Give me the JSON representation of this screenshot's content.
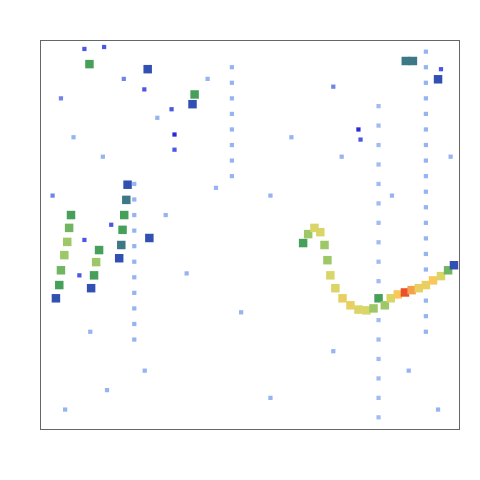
{
  "chart_data": {
    "type": "heatmap",
    "xlim": [
      0,
      100
    ],
    "ylim": [
      0,
      100
    ],
    "grid": false,
    "tick_labels": false,
    "cells": [
      [
        92.1,
        25,
        0.2
      ],
      [
        92.1,
        29,
        0.2
      ],
      [
        92.1,
        33,
        0.2
      ],
      [
        92.1,
        41,
        0.2
      ],
      [
        92.1,
        45,
        0.2
      ],
      [
        92.1,
        49,
        0.2
      ],
      [
        92.1,
        53,
        0.2
      ],
      [
        92.1,
        57,
        0.2
      ],
      [
        92.1,
        61,
        0.2
      ],
      [
        92.1,
        65,
        0.2
      ],
      [
        92.1,
        69,
        0.2
      ],
      [
        92.1,
        73,
        0.2
      ],
      [
        92.1,
        77,
        0.2
      ],
      [
        92.1,
        81,
        0.2
      ],
      [
        92.1,
        85,
        0.2
      ],
      [
        92.1,
        89,
        0.2
      ],
      [
        92.1,
        93,
        0.2
      ],
      [
        92.1,
        97,
        0.2
      ],
      [
        80.8,
        3,
        0.18
      ],
      [
        80.8,
        8,
        0.18
      ],
      [
        80.8,
        13,
        0.18
      ],
      [
        80.8,
        18,
        0.18
      ],
      [
        80.8,
        23,
        0.18
      ],
      [
        80.8,
        28,
        0.18
      ],
      [
        80.8,
        38,
        0.18
      ],
      [
        80.8,
        43,
        0.18
      ],
      [
        80.8,
        48,
        0.18
      ],
      [
        80.8,
        53,
        0.18
      ],
      [
        80.8,
        58,
        0.18
      ],
      [
        80.8,
        63,
        0.18
      ],
      [
        80.8,
        68,
        0.18
      ],
      [
        80.8,
        73,
        0.18
      ],
      [
        80.8,
        78,
        0.18
      ],
      [
        80.8,
        83,
        0.18
      ],
      [
        45.8,
        65,
        0.2
      ],
      [
        45.8,
        69,
        0.2
      ],
      [
        45.8,
        73,
        0.2
      ],
      [
        45.8,
        77,
        0.2
      ],
      [
        45.8,
        81,
        0.2
      ],
      [
        45.8,
        85,
        0.2
      ],
      [
        45.8,
        89,
        0.2
      ],
      [
        45.8,
        93,
        0.2
      ],
      [
        22.5,
        23,
        0.2
      ],
      [
        22.5,
        27,
        0.2
      ],
      [
        22.5,
        31,
        0.2
      ],
      [
        22.5,
        35,
        0.2
      ],
      [
        22.5,
        39,
        0.2
      ],
      [
        22.5,
        43,
        0.2
      ],
      [
        22.5,
        47,
        0.2
      ],
      [
        22.5,
        51,
        0.2
      ],
      [
        22.5,
        55,
        0.2
      ],
      [
        22.5,
        59,
        0.2
      ],
      [
        22.5,
        63,
        0.2
      ],
      [
        5,
        85,
        0.25
      ],
      [
        8,
        75,
        0.2
      ],
      [
        15,
        70,
        0.2
      ],
      [
        28,
        80,
        0.2
      ],
      [
        40,
        90,
        0.2
      ],
      [
        3,
        60,
        0.25
      ],
      [
        30,
        55,
        0.2
      ],
      [
        12,
        25,
        0.2
      ],
      [
        25,
        15,
        0.2
      ],
      [
        6,
        5,
        0.2
      ],
      [
        35,
        40,
        0.2
      ],
      [
        48,
        30,
        0.2
      ],
      [
        55,
        60,
        0.2
      ],
      [
        60,
        75,
        0.2
      ],
      [
        70,
        88,
        0.25
      ],
      [
        72,
        70,
        0.2
      ],
      [
        84,
        60,
        0.2
      ],
      [
        98,
        70,
        0.2
      ],
      [
        88,
        15,
        0.2
      ],
      [
        70,
        20,
        0.2
      ],
      [
        95,
        5,
        0.2
      ],
      [
        55,
        8,
        0.2
      ],
      [
        20,
        90,
        0.25
      ],
      [
        42,
        62,
        0.2
      ],
      [
        16,
        10,
        0.2
      ],
      [
        17.0,
        52.5,
        0.3
      ],
      [
        10.6,
        48.6,
        0.3
      ],
      [
        9.4,
        39.5,
        0.3
      ],
      [
        10.6,
        97.7,
        0.3
      ],
      [
        15.3,
        98.2,
        0.3
      ],
      [
        24.9,
        87.3,
        0.3
      ],
      [
        31.4,
        82.2,
        0.3
      ],
      [
        32.1,
        71.8,
        0.3
      ],
      [
        95.7,
        92.5,
        0.3
      ],
      [
        76.5,
        74.4,
        0.3
      ],
      [
        32.1,
        75.7,
        0.35
      ],
      [
        76.0,
        77.0,
        0.35
      ],
      [
        11.8,
        93.8,
        0.5
      ],
      [
        25.7,
        92.5,
        0.4
      ],
      [
        36.9,
        86.0,
        0.5
      ],
      [
        36.4,
        83.5,
        0.4
      ],
      [
        87.3,
        94.6,
        0.45
      ],
      [
        89.0,
        94.6,
        0.45
      ],
      [
        95.0,
        89.9,
        0.4
      ],
      [
        7.4,
        55.0,
        0.5
      ],
      [
        6.95,
        51.7,
        0.55
      ],
      [
        6.5,
        48.1,
        0.6
      ],
      [
        5.8,
        44.7,
        0.6
      ],
      [
        5.0,
        40.8,
        0.55
      ],
      [
        4.6,
        37.0,
        0.5
      ],
      [
        3.8,
        33.6,
        0.4
      ],
      [
        14.1,
        46.0,
        0.5
      ],
      [
        13.4,
        42.9,
        0.6
      ],
      [
        12.9,
        39.5,
        0.5
      ],
      [
        12.2,
        36.2,
        0.4
      ],
      [
        20.9,
        62.8,
        0.4
      ],
      [
        20.6,
        58.9,
        0.45
      ],
      [
        20.1,
        55.0,
        0.5
      ],
      [
        19.7,
        51.2,
        0.5
      ],
      [
        19.4,
        47.3,
        0.45
      ],
      [
        18.9,
        43.9,
        0.4
      ],
      [
        26.1,
        49.1,
        0.4
      ],
      [
        62.8,
        47.8,
        0.5
      ],
      [
        64.0,
        50.1,
        0.6
      ],
      [
        65.5,
        51.7,
        0.7
      ],
      [
        66.9,
        50.6,
        0.7
      ],
      [
        67.9,
        47.3,
        0.6
      ],
      [
        68.6,
        43.4,
        0.6
      ],
      [
        69.3,
        39.5,
        0.7
      ],
      [
        70.5,
        36.2,
        0.7
      ],
      [
        72.2,
        33.6,
        0.75
      ],
      [
        74.1,
        31.8,
        0.75
      ],
      [
        76.0,
        30.7,
        0.7
      ],
      [
        77.9,
        30.5,
        0.7
      ],
      [
        79.6,
        31.0,
        0.6
      ],
      [
        80.8,
        33.6,
        0.5
      ],
      [
        82.3,
        31.8,
        0.6
      ],
      [
        83.7,
        33.6,
        0.7
      ],
      [
        85.4,
        34.6,
        0.8
      ],
      [
        87.1,
        35.1,
        0.95
      ],
      [
        88.7,
        35.7,
        0.85
      ],
      [
        90.4,
        36.2,
        0.75
      ],
      [
        92.1,
        37.0,
        0.75
      ],
      [
        93.8,
        38.2,
        0.8
      ],
      [
        95.7,
        39.3,
        0.7
      ],
      [
        97.4,
        40.8,
        0.55
      ],
      [
        98.8,
        42.1,
        0.4
      ]
    ]
  }
}
